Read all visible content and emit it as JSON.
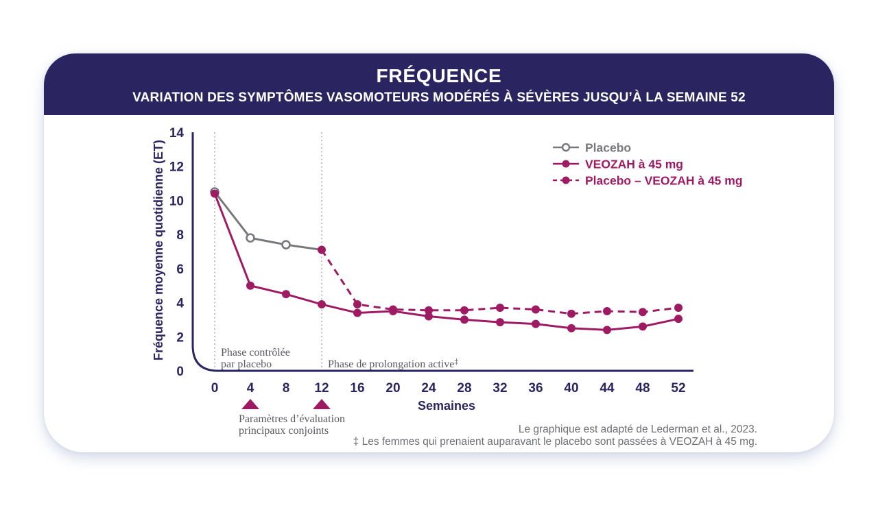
{
  "header": {
    "title": "FRÉQUENCE",
    "subtitle": "VARIATION DES SYMPTÔMES VASOMOTEURS MODÉRÉS À SÉVÈRES JUSQU’À LA SEMAINE 52"
  },
  "colors": {
    "navy": "#2A2560",
    "magenta": "#9E1A62",
    "placebo_gray": "#77787B",
    "annotation_gray": "#5B5B5F",
    "footnote_gray": "#6D6E71",
    "dotted_rule": "#AAB1C6",
    "header_bg": "#2A2560",
    "card_bg": "#FFFFFF"
  },
  "chart_data": {
    "type": "line",
    "xlabel": "Semaines",
    "ylabel": "Fréquence moyenne quotidienne (ET)",
    "xlim": [
      0,
      52
    ],
    "ylim": [
      0,
      14
    ],
    "x_ticks": [
      0,
      4,
      8,
      12,
      16,
      20,
      24,
      28,
      32,
      36,
      40,
      44,
      48,
      52
    ],
    "y_ticks": [
      0,
      2,
      4,
      6,
      8,
      10,
      12,
      14
    ],
    "grid": false,
    "legend_position": "top-right",
    "dotted_verticals_weeks": [
      0,
      12
    ],
    "series": [
      {
        "name": "Placebo",
        "color": "#77787B",
        "style": "solid",
        "marker": "open-circle",
        "marker_x": [
          0,
          4,
          8
        ],
        "x": [
          0,
          4,
          8,
          12
        ],
        "y": [
          10.5,
          7.8,
          7.4,
          7.1
        ]
      },
      {
        "name": "VEOZAH à 45 mg",
        "color": "#9E1A62",
        "style": "solid",
        "marker": "filled-circle",
        "x": [
          0,
          4,
          8,
          12,
          16,
          20,
          24,
          28,
          32,
          36,
          40,
          44,
          48,
          52
        ],
        "y": [
          10.4,
          5.0,
          4.5,
          3.9,
          3.4,
          3.5,
          3.2,
          3.0,
          2.85,
          2.75,
          2.5,
          2.4,
          2.6,
          3.05
        ]
      },
      {
        "name": "Placebo – VEOZAH à 45 mg",
        "color": "#9E1A62",
        "style": "dashed",
        "marker": "filled-circle",
        "x": [
          12,
          16,
          20,
          24,
          28,
          32,
          36,
          40,
          44,
          48,
          52
        ],
        "y": [
          7.1,
          3.9,
          3.6,
          3.55,
          3.55,
          3.7,
          3.6,
          3.35,
          3.5,
          3.45,
          3.7
        ]
      }
    ],
    "annotations": {
      "phase1_lines": [
        "Phase contrôlée",
        "par placebo"
      ],
      "phase2": "Phase de prolongation active‡",
      "endpoint_arrow_weeks": [
        4,
        12
      ],
      "endpoint_label_lines": [
        "Paramètres d’évaluation",
        "principaux conjoints"
      ]
    }
  },
  "footnotes": [
    "Le graphique est adapté de Lederman et al., 2023.",
    "‡ Les femmes qui prenaient auparavant le placebo sont passées à VEOZAH à 45 mg."
  ]
}
